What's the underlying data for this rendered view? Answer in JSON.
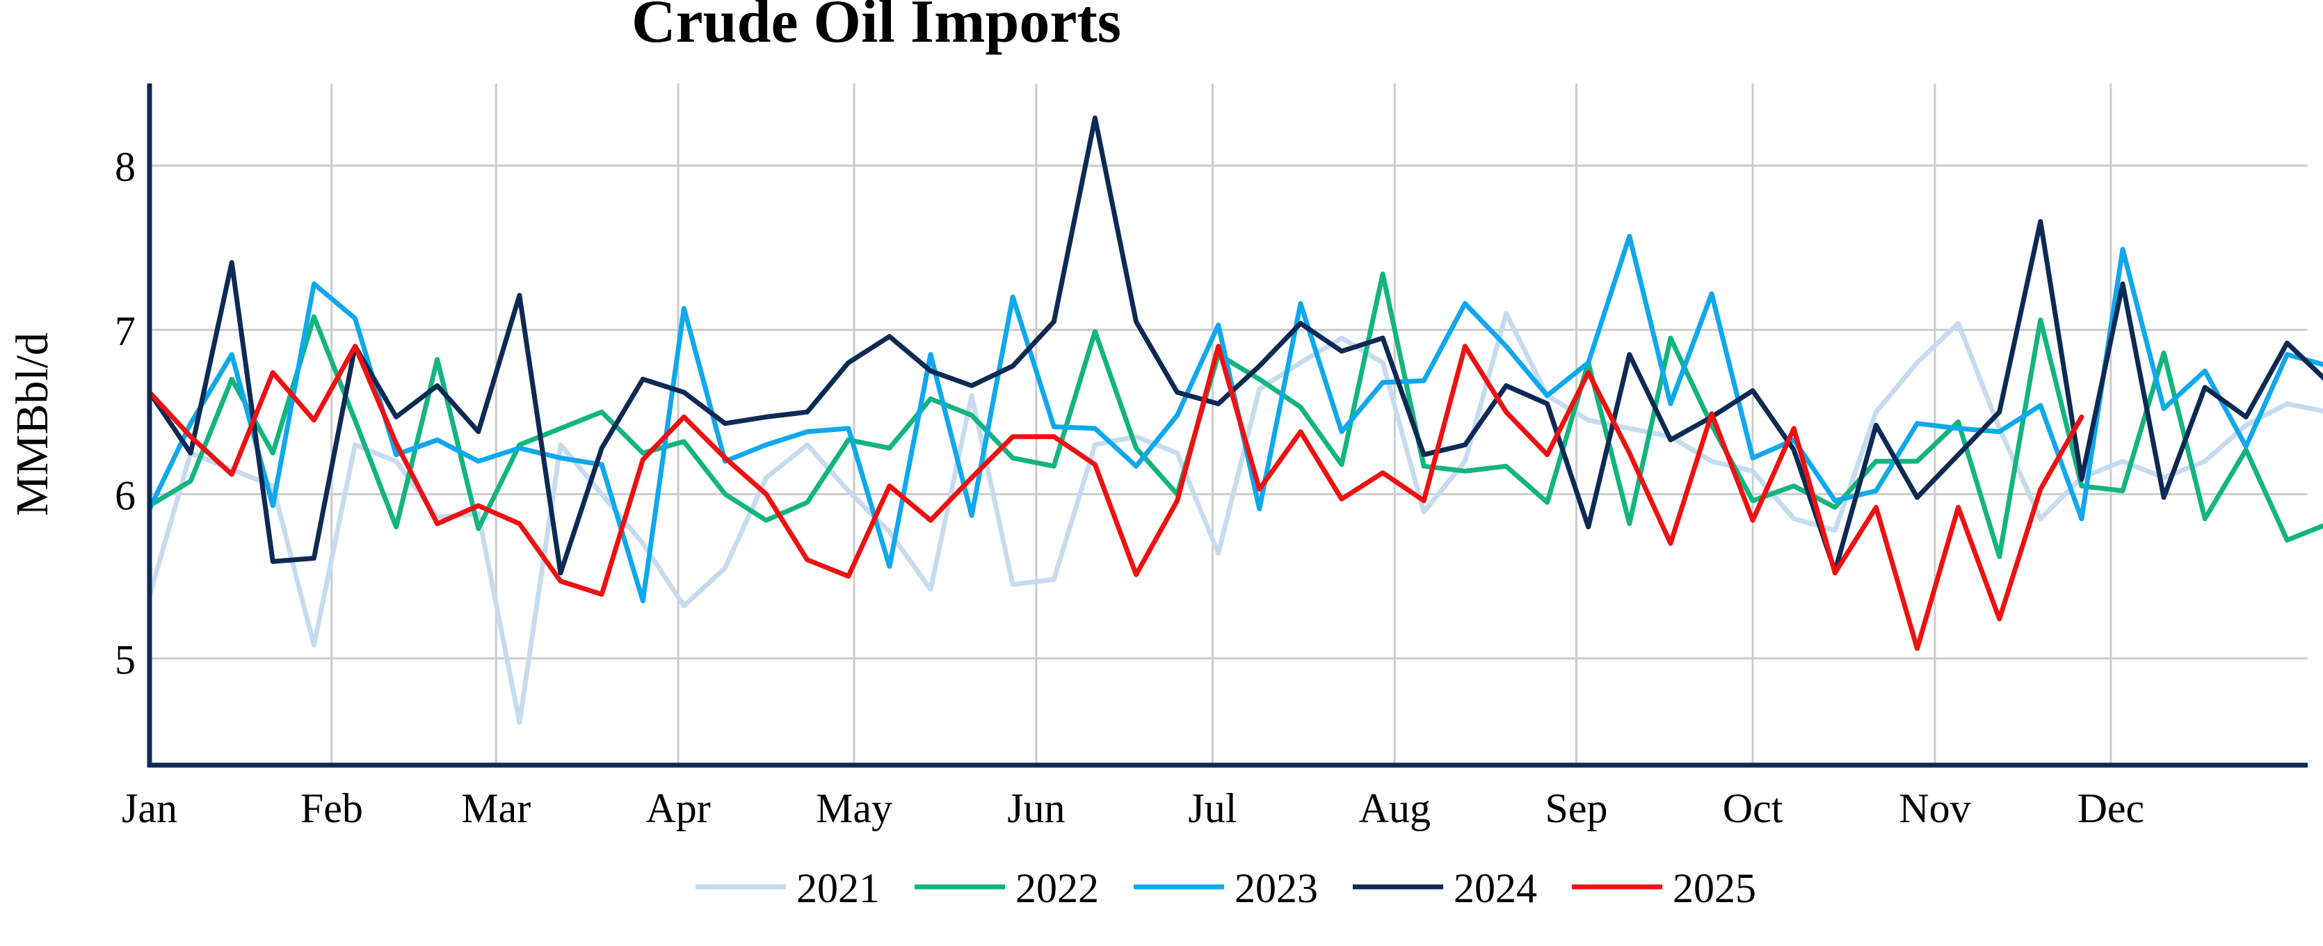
{
  "chart_data": {
    "type": "line",
    "title": "Crude Oil Imports",
    "xlabel": "",
    "ylabel": "MMBbl/d",
    "ylim": [
      4.35,
      8.5
    ],
    "xlim": [
      0,
      52.5
    ],
    "yticks": [
      5,
      6,
      7,
      8
    ],
    "x_ticks": [
      {
        "label": "Jan",
        "x": 0
      },
      {
        "label": "Feb",
        "x": 4.43
      },
      {
        "label": "Mar",
        "x": 8.43
      },
      {
        "label": "Apr",
        "x": 12.86
      },
      {
        "label": "May",
        "x": 17.14
      },
      {
        "label": "Jun",
        "x": 21.57
      },
      {
        "label": "Jul",
        "x": 25.86
      },
      {
        "label": "Aug",
        "x": 30.29
      },
      {
        "label": "Sep",
        "x": 34.71
      },
      {
        "label": "Oct",
        "x": 39.0
      },
      {
        "label": "Nov",
        "x": 43.43
      },
      {
        "label": "Dec",
        "x": 47.71
      }
    ],
    "x_unit": "week of year",
    "grid": true,
    "legend_position": "bottom",
    "series": [
      {
        "name": "2021",
        "color": "#c6dbef",
        "values": [
          5.38,
          6.25,
          6.15,
          6.05,
          5.08,
          6.3,
          6.2,
          5.86,
          5.88,
          4.61,
          6.3,
          6.0,
          5.7,
          5.32,
          5.55,
          6.1,
          6.3,
          6.02,
          5.77,
          5.42,
          6.6,
          5.45,
          5.48,
          6.3,
          6.35,
          6.25,
          5.64,
          6.64,
          6.8,
          6.95,
          6.8,
          5.89,
          6.2,
          7.1,
          6.6,
          6.45,
          6.4,
          6.35,
          6.2,
          6.14,
          5.85,
          5.78,
          6.5,
          6.8,
          7.04,
          6.4,
          5.85,
          6.1,
          6.2,
          6.1,
          6.2,
          6.42,
          6.55,
          6.5,
          6.2,
          6.7,
          5.95
        ]
      },
      {
        "name": "2022",
        "color": "#13b47f",
        "values": [
          5.93,
          6.08,
          6.7,
          6.25,
          7.08,
          6.45,
          5.8,
          6.82,
          5.79,
          6.3,
          6.4,
          6.5,
          6.25,
          6.32,
          6.0,
          5.84,
          5.95,
          6.33,
          6.28,
          6.58,
          6.48,
          6.22,
          6.17,
          6.99,
          6.28,
          6.0,
          6.85,
          6.7,
          6.53,
          6.18,
          7.34,
          6.17,
          6.14,
          6.17,
          5.95,
          6.8,
          5.82,
          6.95,
          6.42,
          5.96,
          6.05,
          5.92,
          6.2,
          6.2,
          6.44,
          5.62,
          7.06,
          6.05,
          6.02,
          6.86,
          5.85,
          6.27,
          5.72,
          5.82
        ]
      },
      {
        "name": "2023",
        "color": "#0fa8ec",
        "values": [
          5.91,
          6.43,
          6.85,
          5.93,
          7.28,
          7.07,
          6.24,
          6.33,
          6.2,
          6.28,
          6.22,
          6.18,
          5.35,
          7.13,
          6.2,
          6.3,
          6.38,
          6.4,
          5.56,
          6.85,
          5.87,
          7.2,
          6.41,
          6.4,
          6.17,
          6.48,
          7.03,
          5.91,
          7.16,
          6.38,
          6.68,
          6.69,
          7.16,
          6.9,
          6.6,
          6.8,
          7.57,
          6.55,
          7.22,
          6.22,
          6.33,
          5.96,
          6.02,
          6.43,
          6.4,
          6.38,
          6.54,
          5.85,
          7.49,
          6.52,
          6.75,
          6.29,
          6.85,
          6.78
        ]
      },
      {
        "name": "2024",
        "color": "#0d2a54",
        "values": [
          6.62,
          6.25,
          7.41,
          5.59,
          5.61,
          6.9,
          6.47,
          6.66,
          6.38,
          7.21,
          5.52,
          6.28,
          6.7,
          6.62,
          6.43,
          6.47,
          6.5,
          6.8,
          6.96,
          6.75,
          6.66,
          6.78,
          7.05,
          8.29,
          7.05,
          6.62,
          6.55,
          6.78,
          7.04,
          6.87,
          6.95,
          6.24,
          6.3,
          6.66,
          6.55,
          5.8,
          6.85,
          6.33,
          6.47,
          6.63,
          6.27,
          5.53,
          6.42,
          5.98,
          6.24,
          6.5,
          7.66,
          6.09,
          7.28,
          5.98,
          6.65,
          6.47,
          6.92,
          6.68
        ]
      },
      {
        "name": "2025",
        "color": "#ee1111",
        "values": [
          6.62,
          6.35,
          6.12,
          6.74,
          6.45,
          6.9,
          6.31,
          5.82,
          5.93,
          5.82,
          5.47,
          5.39,
          6.21,
          6.47,
          6.22,
          6.0,
          5.6,
          5.5,
          6.05,
          5.84,
          6.1,
          6.35,
          6.35,
          6.18,
          5.51,
          5.96,
          6.9,
          6.03,
          6.38,
          5.97,
          6.13,
          5.96,
          6.9,
          6.5,
          6.24,
          6.74,
          6.25,
          5.7,
          6.49,
          5.84,
          6.4,
          5.52,
          5.92,
          5.06,
          5.92,
          5.24,
          6.03,
          6.47
        ]
      }
    ]
  }
}
